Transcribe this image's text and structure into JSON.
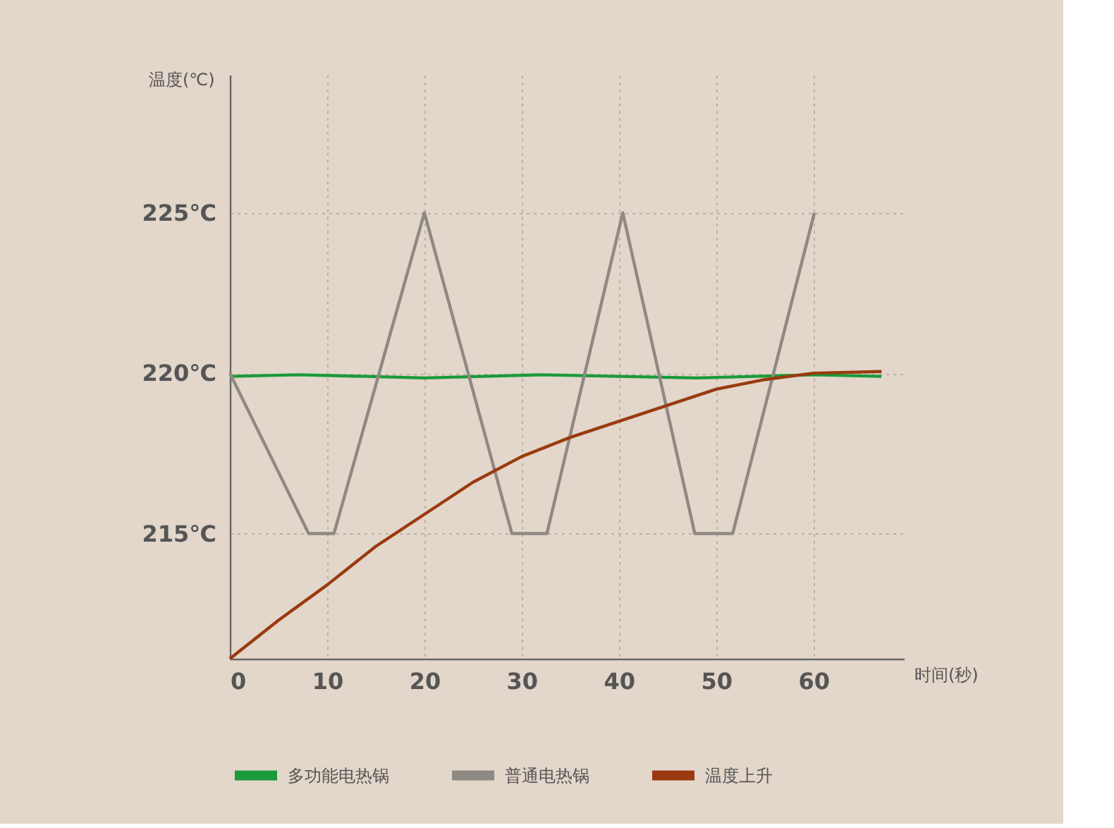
{
  "chart_data": {
    "type": "line",
    "xlabel": "时间(秒)",
    "ylabel": "温度(℃)",
    "xlim": [
      0,
      69.3
    ],
    "ylim": [
      211.1,
      229.3
    ],
    "xticks": [
      0,
      10,
      20,
      30,
      40,
      50,
      60
    ],
    "yticks": [
      {
        "value": 215,
        "label": "215℃"
      },
      {
        "value": 220,
        "label": "220℃"
      },
      {
        "value": 225,
        "label": "225℃"
      }
    ],
    "grid": true,
    "legend": "bottom",
    "marker": "none",
    "line_style": "solid",
    "series": [
      {
        "name": "多功能电热锅",
        "color": "#1a9a3a",
        "x": [
          0,
          7,
          14,
          20,
          26,
          32,
          40,
          48,
          54,
          60,
          67
        ],
        "values": [
          219.9,
          219.95,
          219.9,
          219.85,
          219.9,
          219.95,
          219.9,
          219.85,
          219.9,
          219.95,
          219.9
        ]
      },
      {
        "name": "普通电热锅",
        "color": "#8f8984",
        "x": [
          0,
          8.1,
          10.7,
          20,
          29,
          32.6,
          40.4,
          47.8,
          51.7,
          60.1
        ],
        "values": [
          220,
          215,
          215,
          225,
          215,
          215,
          225,
          215,
          215,
          225
        ]
      },
      {
        "name": "温度上升",
        "color": "#9a3a10",
        "x": [
          0,
          5,
          10,
          15,
          20,
          25,
          30,
          35,
          40,
          45,
          50,
          55,
          60,
          67
        ],
        "values": [
          211.1,
          212.3,
          213.4,
          214.6,
          215.6,
          216.6,
          217.4,
          218.0,
          218.5,
          219.0,
          219.5,
          219.8,
          220.0,
          220.05
        ]
      }
    ]
  }
}
